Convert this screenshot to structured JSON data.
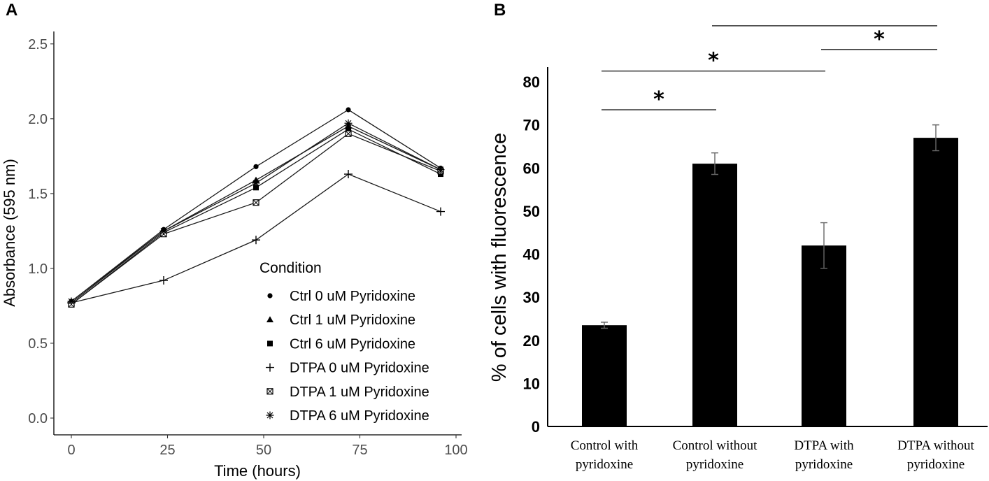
{
  "panels": [
    {
      "letter": "A",
      "chart_data": {
        "type": "line",
        "xlabel": "Time (hours)",
        "ylabel": "Absorbance (595 nm)",
        "xlim": [
          0,
          100
        ],
        "ylim": [
          0,
          2.5
        ],
        "x_ticks": [
          "0",
          "25",
          "50",
          "75",
          "100"
        ],
        "y_ticks": [
          "0.0",
          "0.5",
          "1.0",
          "1.5",
          "2.0",
          "2.5"
        ],
        "x": [
          0,
          24,
          48,
          72,
          96
        ],
        "legend_title": "Condition",
        "legend_position": "bottom-right inside",
        "series": [
          {
            "name": "Ctrl 0 uM Pyridoxine",
            "marker": "circle",
            "values": [
              0.78,
              1.26,
              1.68,
              2.06,
              1.67
            ]
          },
          {
            "name": "Ctrl 1 uM Pyridoxine",
            "marker": "triangle",
            "values": [
              0.77,
              1.25,
              1.59,
              1.95,
              1.66
            ]
          },
          {
            "name": "Ctrl 6 uM Pyridoxine",
            "marker": "square",
            "values": [
              0.76,
              1.24,
              1.54,
              1.93,
              1.63
            ]
          },
          {
            "name": "DTPA 0 uM Pyridoxine",
            "marker": "plus",
            "values": [
              0.77,
              0.92,
              1.19,
              1.63,
              1.38
            ]
          },
          {
            "name": "DTPA 1 uM Pyridoxine",
            "marker": "boxed-x",
            "values": [
              0.76,
              1.23,
              1.44,
              1.9,
              1.65
            ]
          },
          {
            "name": "DTPA 6 uM Pyridoxine",
            "marker": "asterisk",
            "values": [
              0.78,
              1.25,
              1.57,
              1.97,
              1.66
            ]
          }
        ]
      }
    },
    {
      "letter": "B",
      "chart_data": {
        "type": "bar",
        "ylabel": "% of cells with fluorescence",
        "ylim": [
          0,
          80
        ],
        "y_ticks": [
          "0",
          "10",
          "20",
          "30",
          "40",
          "50",
          "60",
          "70",
          "80"
        ],
        "categories": [
          [
            "Control with",
            "pyridoxine"
          ],
          [
            "Control without",
            "pyridoxine"
          ],
          [
            "DTPA with",
            "pyridoxine"
          ],
          [
            "DTPA without",
            "pyridoxine"
          ]
        ],
        "values": [
          23.5,
          61,
          42,
          67
        ],
        "errors": [
          0.7,
          2.5,
          5.3,
          3
        ],
        "significance": [
          {
            "from": 0,
            "to": 1,
            "level": 73.5,
            "label": "*"
          },
          {
            "from": 0,
            "to": 2,
            "level": 82.5,
            "label": "*"
          },
          {
            "from": 2,
            "to": 3,
            "level": 87.5,
            "label": "*"
          },
          {
            "from": 1,
            "to": 3,
            "level": 93,
            "label": ""
          }
        ]
      }
    }
  ]
}
